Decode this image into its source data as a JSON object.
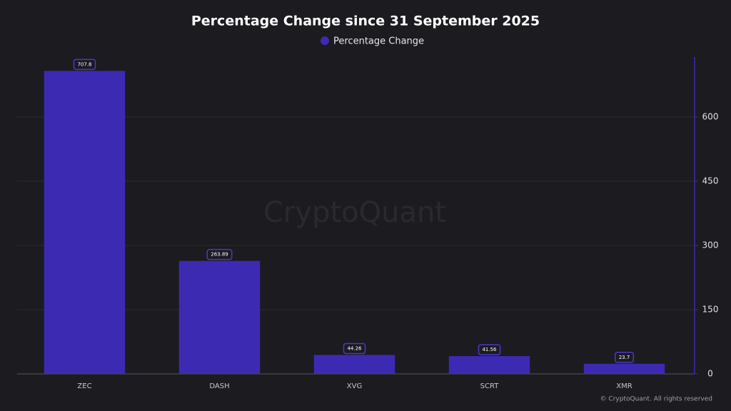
{
  "chart_data": {
    "type": "bar",
    "title": "Percentage Change since 31 September 2025",
    "categories": [
      "ZEC",
      "DASH",
      "XVG",
      "SCRT",
      "XMR"
    ],
    "series": [
      {
        "name": "Percentage Change",
        "color": "#3d2ab3",
        "values": [
          707.8,
          263.89,
          44.26,
          41.56,
          23.7
        ]
      }
    ],
    "ylim": [
      0,
      740
    ],
    "yticks": [
      0,
      150,
      300,
      450,
      600
    ],
    "y_axis_side": "right",
    "grid": true,
    "watermark": "CryptoQuant",
    "footer": "© CryptoQuant. All rights reserved"
  }
}
